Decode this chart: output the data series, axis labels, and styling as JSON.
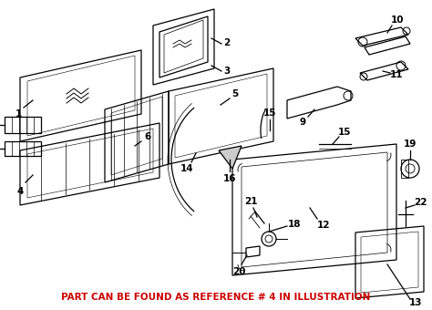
{
  "background_color": "#ffffff",
  "footer_text": "PART CAN BE FOUND AS REFERENCE # 4 IN ILLUSTRATION",
  "footer_color": "#cc0000",
  "footer_fontsize": 7.5,
  "figsize": [
    4.74,
    3.4
  ],
  "dpi": 100,
  "label_fontsize": 7.5
}
